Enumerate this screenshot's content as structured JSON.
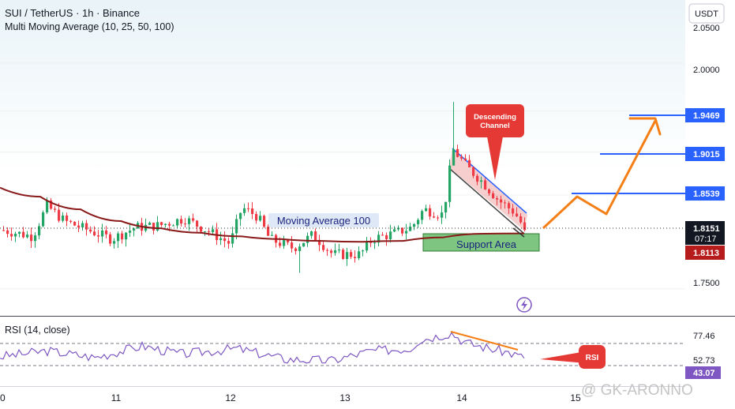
{
  "header": {
    "symbol_line": "SUI / TetherUS · 1h · Binance",
    "indicator_line": "Multi Moving Average (10, 25, 50, 100)"
  },
  "currency_button": "USDT",
  "price_axis": {
    "ticks": [
      "2.0500",
      "2.0000",
      "1.9469",
      "1.9015",
      "1.8539",
      "1.7500"
    ],
    "current_price": "1.8151",
    "countdown": "07:17",
    "ma_price": "1.8113"
  },
  "rsi_panel": {
    "title": "RSI (14, close)",
    "levels": [
      "77.46",
      "52.73",
      "43.07"
    ]
  },
  "time_axis": {
    "labels": [
      "0",
      "11",
      "12",
      "13",
      "14",
      "15"
    ]
  },
  "annotations": {
    "ma_label": "Moving Average 100",
    "support_label": "Support Area",
    "channel_label_line1": "Descending",
    "channel_label_line2": "Channel",
    "rsi_callout": "RSI",
    "watermark": "@ GK-ARONNO"
  },
  "colors": {
    "up": "#22a565",
    "down": "#ef3b45",
    "ma100": "#8a1a1a",
    "rsi_line": "#7e57c2",
    "target_blue": "#2962ff",
    "projection_orange": "#f57f17",
    "support_fill": "#66bb6a",
    "callout_red": "#e53935"
  },
  "chart_data": [
    {
      "type": "candlestick",
      "title": "SUI / TetherUS · 1h · Binance",
      "ylim": [
        1.72,
        2.07
      ],
      "y_ticks": [
        2.05,
        2.0,
        1.9469,
        1.9015,
        1.8539,
        1.75
      ],
      "x_labels": [
        "0",
        "11",
        "12",
        "13",
        "14",
        "15"
      ],
      "current_price": 1.8151,
      "target_levels": [
        1.8539,
        1.9015,
        1.9469
      ],
      "ma100_last": 1.8113,
      "series": [
        {
          "name": "Moving Average 100",
          "values": [
            1.862,
            1.852,
            1.838,
            1.825,
            1.817,
            1.812,
            1.808,
            1.805,
            1.803,
            1.802,
            1.803,
            1.807,
            1.811,
            1.8113
          ]
        }
      ],
      "projection": [
        1.8151,
        1.858,
        1.835,
        1.9469
      ]
    },
    {
      "type": "line",
      "title": "RSI (14, close)",
      "ylim": [
        10,
        90
      ],
      "levels": [
        77.46,
        52.73,
        43.07
      ]
    }
  ]
}
